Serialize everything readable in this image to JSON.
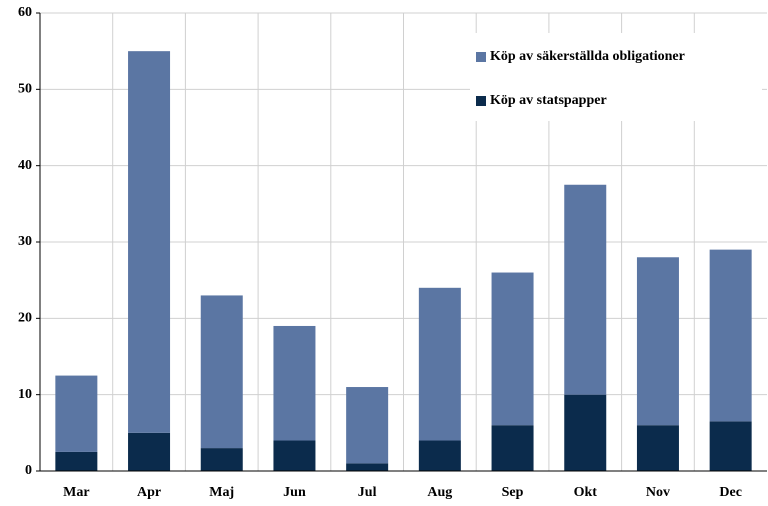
{
  "chart_data": {
    "type": "stacked_bar",
    "categories": [
      "Mar",
      "Apr",
      "Maj",
      "Jun",
      "Jul",
      "Aug",
      "Sep",
      "Okt",
      "Nov",
      "Dec"
    ],
    "series": [
      {
        "name": "Köp av statspapper",
        "color": "#0b2b4c",
        "values": [
          2.5,
          5,
          3,
          4,
          1,
          4,
          6,
          10,
          6,
          6.5
        ]
      },
      {
        "name": "Köp av säkerställda obligationer",
        "color": "#5b76a3",
        "values": [
          10,
          50,
          20,
          15,
          10,
          20,
          20,
          27.5,
          22,
          22.5
        ]
      }
    ],
    "ylim": [
      0,
      60
    ],
    "yticks": [
      0,
      10,
      20,
      30,
      40,
      50,
      60
    ],
    "grid": true,
    "legend": "upper right"
  }
}
